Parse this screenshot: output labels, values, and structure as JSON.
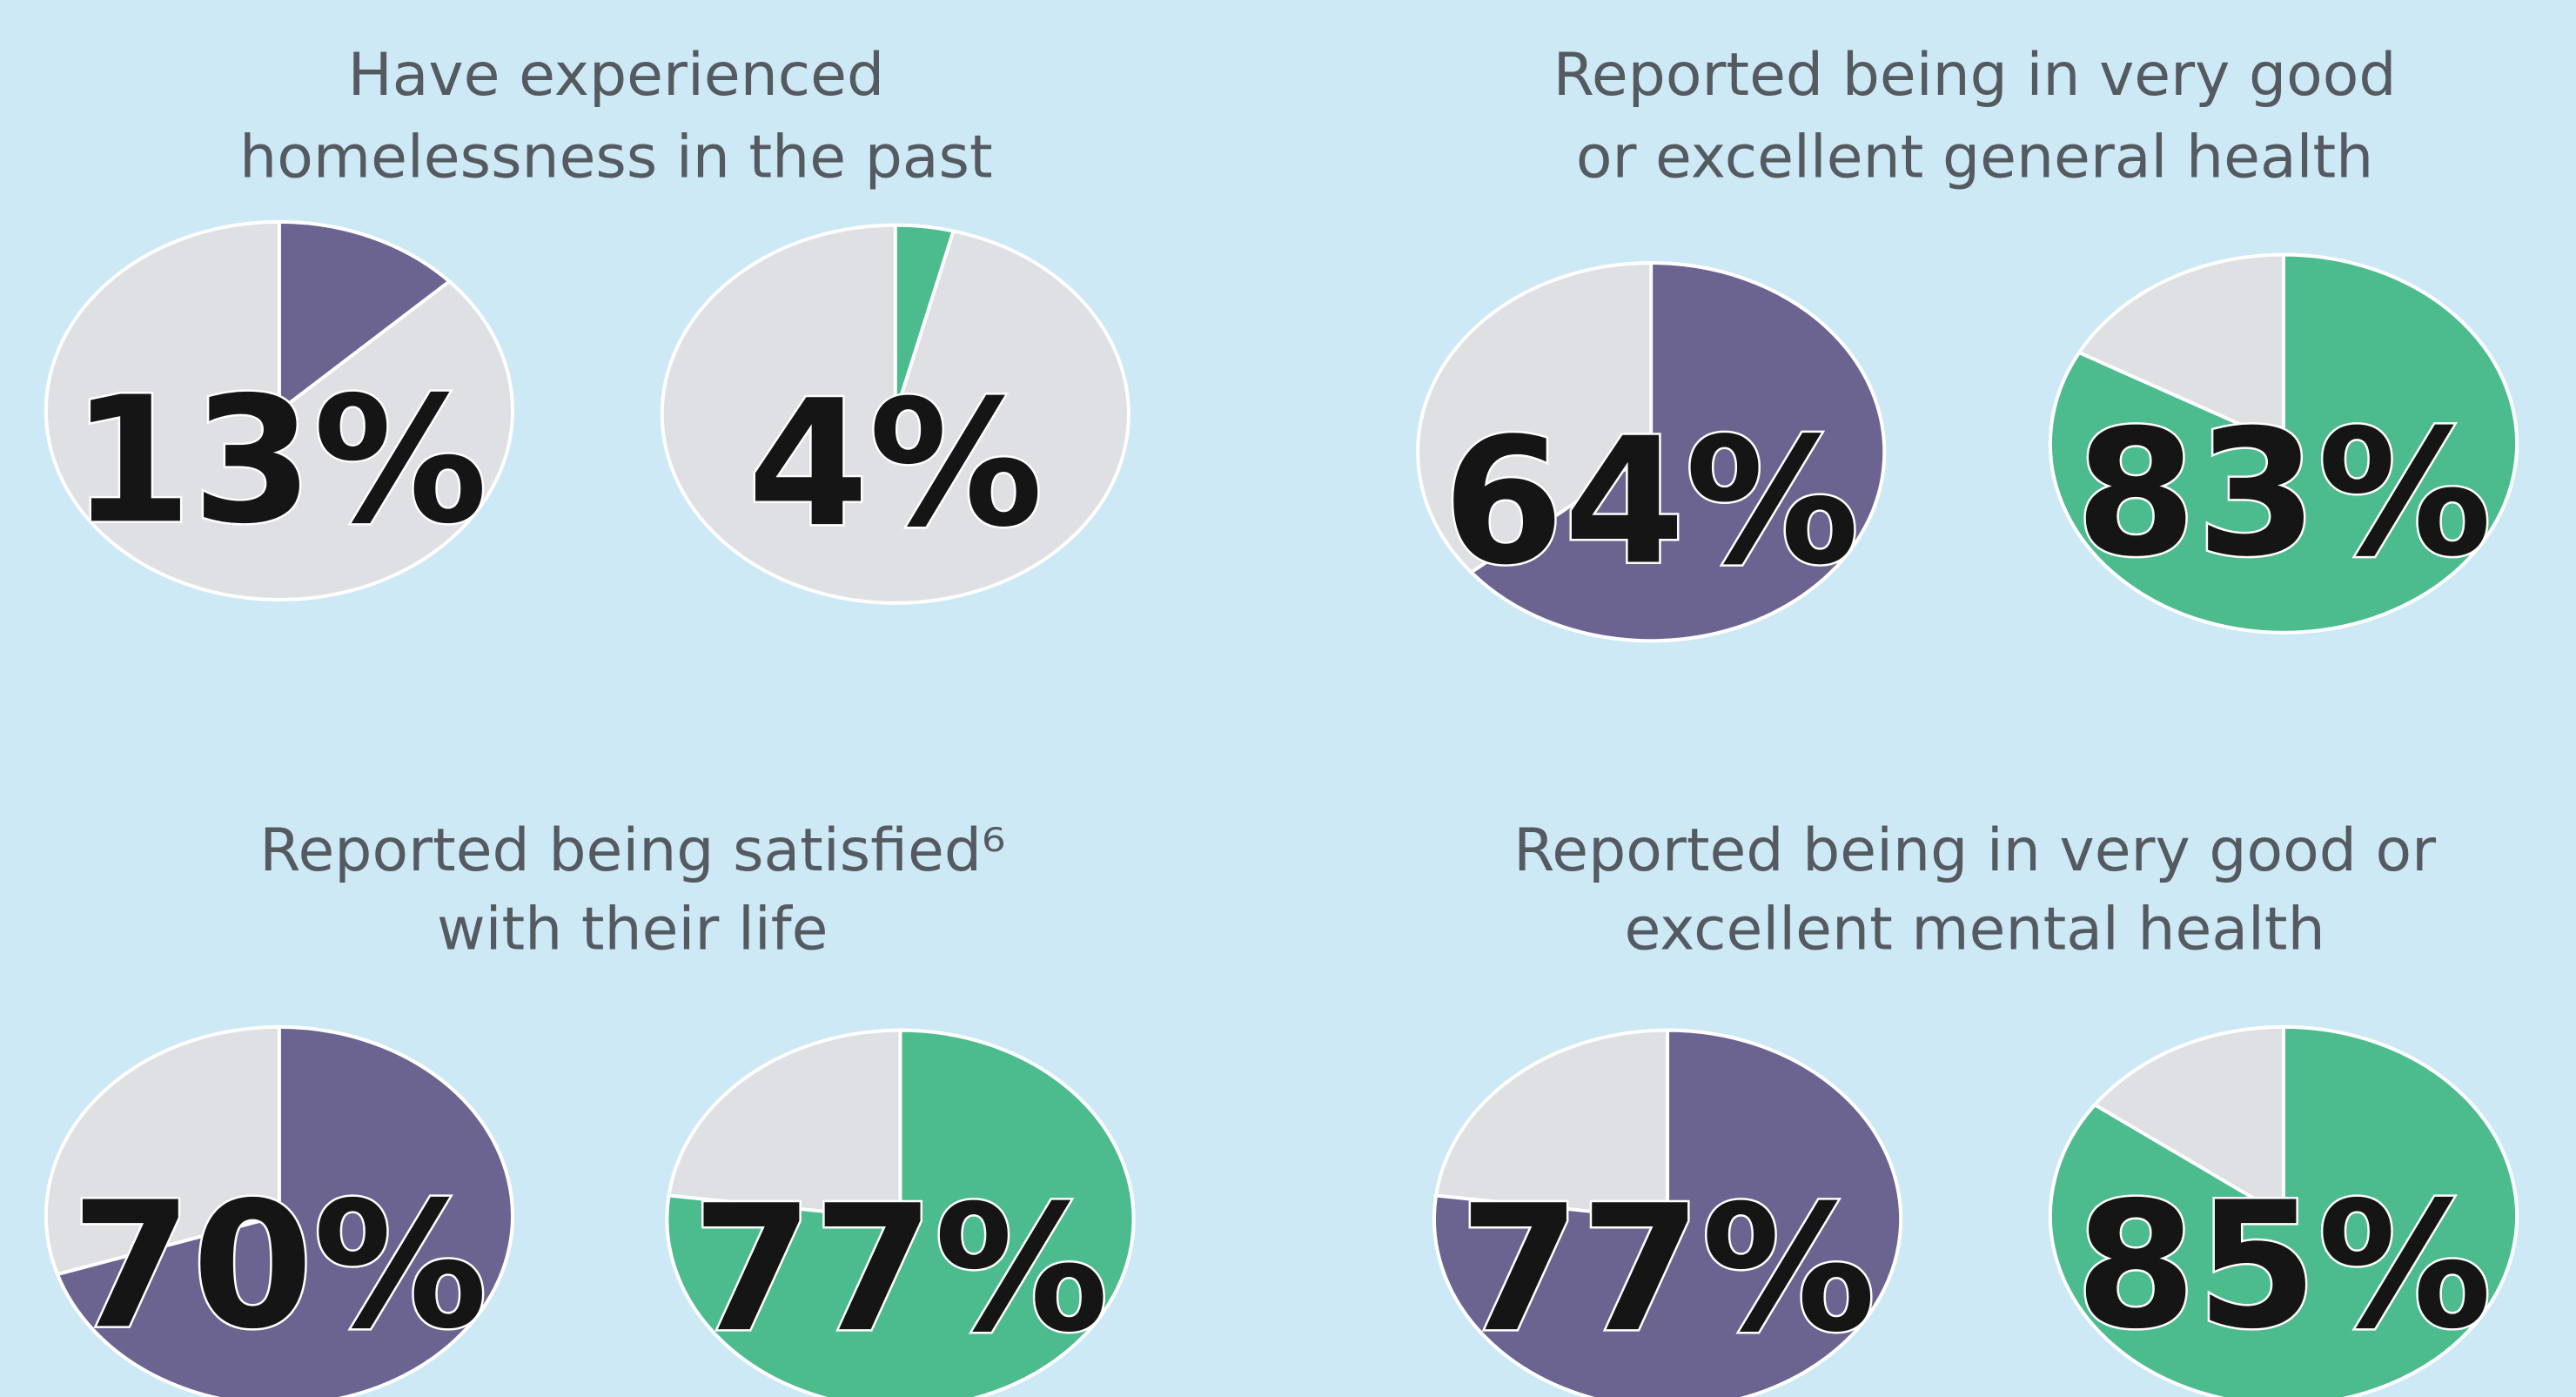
{
  "chart_data": [
    {
      "type": "pie",
      "title": [
        "Have experienced",
        "homelessness in the past"
      ],
      "values": [
        13,
        4
      ],
      "value_labels": [
        "13%",
        "4%"
      ],
      "colors": [
        "#6c6490",
        "#4cbb8e"
      ],
      "rest_color": "#dfe0e4"
    },
    {
      "type": "pie",
      "title": [
        "Reported being in very good",
        "or excellent general health"
      ],
      "values": [
        64,
        83
      ],
      "value_labels": [
        "64%",
        "83%"
      ],
      "colors": [
        "#6c6490",
        "#4cbb8e"
      ],
      "rest_color": "#dfe0e4"
    },
    {
      "type": "pie",
      "title": [
        "Reported being satisfied⁶",
        "with their life"
      ],
      "values": [
        70,
        77
      ],
      "value_labels": [
        "70%",
        "77%"
      ],
      "colors": [
        "#6c6490",
        "#4cbb8e"
      ],
      "rest_color": "#dfe0e4"
    },
    {
      "type": "pie",
      "title": [
        "Reported being in very good or",
        "excellent mental health"
      ],
      "values": [
        77,
        85
      ],
      "value_labels": [
        "77%",
        "85%"
      ],
      "colors": [
        "#6c6490",
        "#4cbb8e"
      ],
      "rest_color": "#dfe0e4"
    }
  ]
}
